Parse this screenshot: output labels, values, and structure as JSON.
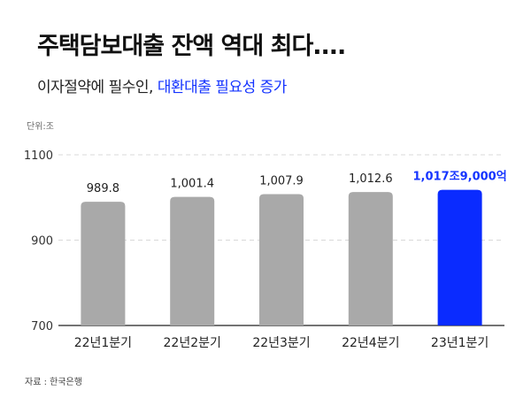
{
  "header": {
    "title": "주택담보대출 잔액 역대 최다....",
    "subtitle_plain": "이자절약에 필수인, ",
    "subtitle_highlight": "대환대출 필요성 증가"
  },
  "unit_label": "단위:조",
  "source_label": "자료 : 한국은행",
  "colors": {
    "bar_default": "#a9a9a9",
    "bar_highlight": "#0a2bff",
    "highlight_text": "#1534ff",
    "grid": "#d9d9d9"
  },
  "chart_data": {
    "type": "bar",
    "categories": [
      "22년1분기",
      "22년2분기",
      "22년3분기",
      "22년4분기",
      "23년1분기"
    ],
    "values": [
      989.8,
      1001.4,
      1007.9,
      1012.6,
      1017.9
    ],
    "data_labels": [
      "989.8",
      "1,001.4",
      "1,007.9",
      "1,012.6",
      "1,017조9,000억"
    ],
    "highlight_index": 4,
    "y_ticks": [
      "1100",
      "900",
      "700"
    ],
    "ylim": [
      700,
      1100
    ],
    "grid": true,
    "xlabel": "",
    "ylabel": ""
  }
}
